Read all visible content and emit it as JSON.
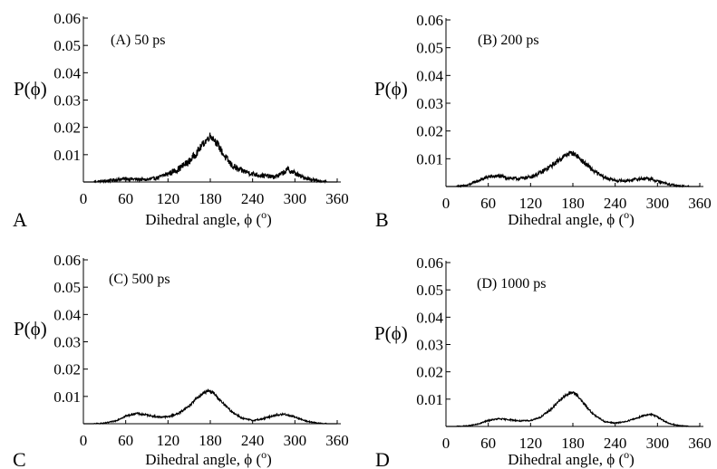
{
  "chart_data": [
    {
      "type": "line",
      "panel_letter": "A",
      "annotation": "(A)  50 ps",
      "ylabel": "P(ϕ)",
      "xlabel": "Dihedral angle, ϕ (",
      "xlabel_unit": "o",
      "xlabel_close": ")",
      "xlim": [
        0,
        360
      ],
      "ylim": [
        0,
        0.06
      ],
      "x_ticks": [
        0,
        60,
        120,
        180,
        240,
        300,
        360
      ],
      "y_ticks": [
        "0.01",
        "0.02",
        "0.03",
        "0.04",
        "0.05",
        "0.06"
      ],
      "grid": false,
      "series": [
        {
          "x": [
            0,
            15,
            30,
            45,
            60,
            75,
            90,
            105,
            120,
            135,
            150,
            160,
            170,
            175,
            180,
            185,
            190,
            200,
            210,
            220,
            230,
            240,
            250,
            260,
            270,
            280,
            290,
            300,
            310,
            320,
            330,
            345,
            360
          ],
          "values": [
            0,
            0,
            0.0003,
            0.0008,
            0.0012,
            0.001,
            0.0008,
            0.0015,
            0.003,
            0.0048,
            0.0075,
            0.0105,
            0.014,
            0.0155,
            0.017,
            0.0158,
            0.014,
            0.0095,
            0.0062,
            0.0045,
            0.0038,
            0.003,
            0.0025,
            0.0022,
            0.0018,
            0.0028,
            0.0045,
            0.0032,
            0.0018,
            0.0012,
            0.0005,
            0,
            0
          ],
          "noise": 0.0014
        }
      ]
    },
    {
      "type": "line",
      "panel_letter": "B",
      "annotation": "(B) 200 ps",
      "ylabel": "P(ϕ)",
      "xlabel": "Dihedral angle, ϕ (",
      "xlabel_unit": "o",
      "xlabel_close": ")",
      "xlim": [
        0,
        360
      ],
      "ylim": [
        0,
        0.06
      ],
      "x_ticks": [
        0,
        60,
        120,
        180,
        240,
        300,
        360
      ],
      "y_ticks": [
        "0.01",
        "0.02",
        "0.03",
        "0.04",
        "0.05",
        "0.06"
      ],
      "grid": false,
      "series": [
        {
          "x": [
            0,
            15,
            30,
            45,
            60,
            75,
            90,
            105,
            120,
            135,
            150,
            165,
            175,
            180,
            185,
            195,
            210,
            225,
            240,
            255,
            270,
            285,
            300,
            315,
            330,
            345,
            360
          ],
          "values": [
            0,
            0,
            0.0004,
            0.002,
            0.0035,
            0.0038,
            0.003,
            0.0028,
            0.0035,
            0.005,
            0.0075,
            0.0105,
            0.012,
            0.012,
            0.0112,
            0.0088,
            0.0055,
            0.0032,
            0.0022,
            0.002,
            0.0026,
            0.003,
            0.002,
            0.0008,
            0.0002,
            0,
            0
          ],
          "noise": 0.0009
        }
      ]
    },
    {
      "type": "line",
      "panel_letter": "C",
      "annotation": "(C) 500 ps",
      "ylabel": "P(ϕ)",
      "xlabel": "Dihedral angle, ϕ (",
      "xlabel_unit": "o",
      "xlabel_close": ")",
      "xlim": [
        0,
        360
      ],
      "ylim": [
        0,
        0.06
      ],
      "x_ticks": [
        0,
        60,
        120,
        180,
        240,
        300,
        360
      ],
      "y_ticks": [
        "0.01",
        "0.02",
        "0.03",
        "0.04",
        "0.05",
        "0.06"
      ],
      "grid": false,
      "series": [
        {
          "x": [
            0,
            15,
            30,
            45,
            60,
            75,
            90,
            105,
            120,
            135,
            150,
            160,
            170,
            178,
            185,
            195,
            210,
            225,
            240,
            255,
            270,
            285,
            300,
            315,
            330,
            345,
            360
          ],
          "values": [
            0,
            0,
            0.0002,
            0.001,
            0.0028,
            0.0038,
            0.0032,
            0.0025,
            0.0025,
            0.0038,
            0.0065,
            0.0092,
            0.0112,
            0.012,
            0.0112,
            0.0082,
            0.0045,
            0.002,
            0.0012,
            0.0018,
            0.003,
            0.0035,
            0.0025,
            0.001,
            0.0003,
            0,
            0
          ],
          "noise": 0.0005
        }
      ]
    },
    {
      "type": "line",
      "panel_letter": "D",
      "annotation": "(D)  1000 ps",
      "ylabel": "P(ϕ)",
      "xlabel": "Dihedral angle, ϕ (",
      "xlabel_unit": "o",
      "xlabel_close": ")",
      "xlim": [
        0,
        360
      ],
      "ylim": [
        0,
        0.06
      ],
      "x_ticks": [
        0,
        60,
        120,
        180,
        240,
        300,
        360
      ],
      "y_ticks": [
        "0.01",
        "0.02",
        "0.03",
        "0.04",
        "0.05",
        "0.06"
      ],
      "grid": false,
      "series": [
        {
          "x": [
            0,
            15,
            30,
            45,
            60,
            75,
            90,
            105,
            120,
            135,
            150,
            160,
            170,
            180,
            185,
            195,
            210,
            225,
            240,
            255,
            270,
            280,
            290,
            300,
            315,
            330,
            345,
            360
          ],
          "values": [
            0,
            0,
            0.0002,
            0.0008,
            0.0022,
            0.0028,
            0.0025,
            0.002,
            0.0022,
            0.0035,
            0.0065,
            0.0092,
            0.0115,
            0.0125,
            0.0118,
            0.0085,
            0.0042,
            0.0018,
            0.0012,
            0.0018,
            0.003,
            0.004,
            0.0045,
            0.0035,
            0.0012,
            0.0003,
            0,
            0
          ],
          "noise": 0.0004
        }
      ]
    }
  ]
}
